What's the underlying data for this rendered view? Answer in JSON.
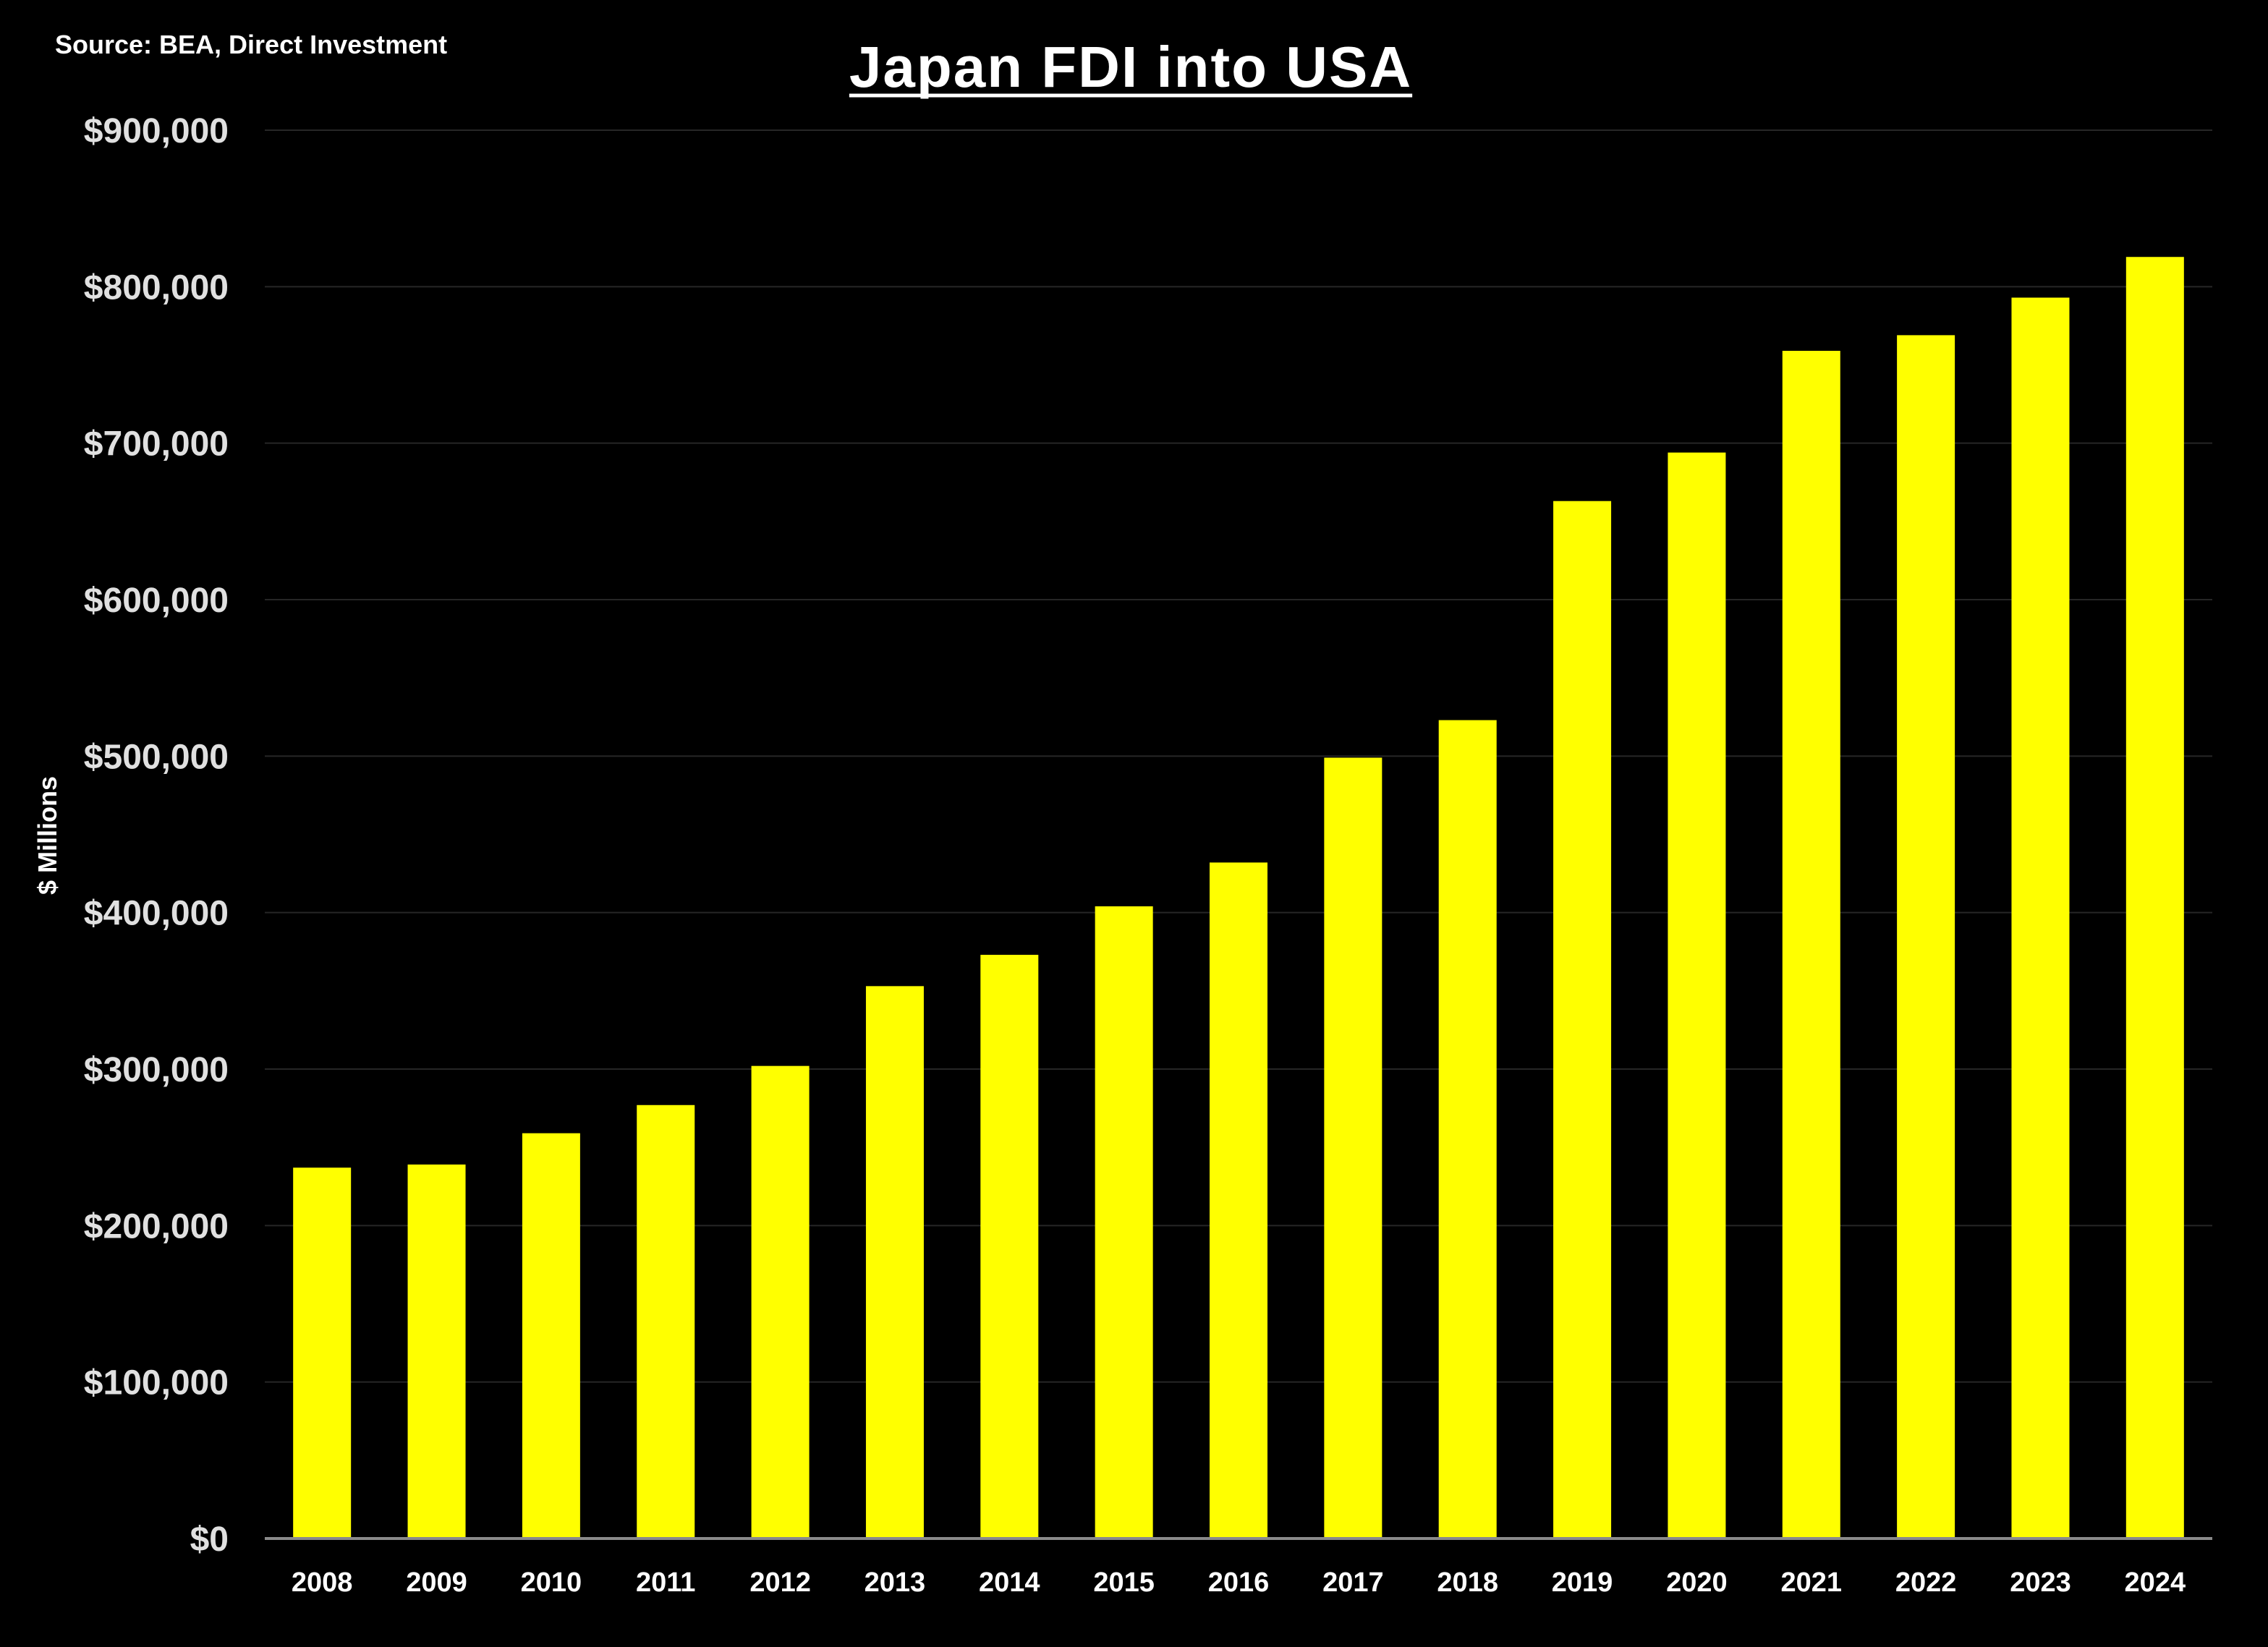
{
  "source": "Source: BEA, Direct Investment",
  "chart_data": {
    "type": "bar",
    "title": "Japan FDI into USA",
    "xlabel": "",
    "ylabel": "$ Millions",
    "ylim": [
      0,
      900000
    ],
    "yticks": [
      0,
      100000,
      200000,
      300000,
      400000,
      500000,
      600000,
      700000,
      800000,
      900000
    ],
    "ytick_labels": [
      "$0",
      "$100,000",
      "$200,000",
      "$300,000",
      "$400,000",
      "$500,000",
      "$600,000",
      "$700,000",
      "$800,000",
      "$900,000"
    ],
    "grid": true,
    "categories": [
      "2008",
      "2009",
      "2010",
      "2011",
      "2012",
      "2013",
      "2014",
      "2015",
      "2016",
      "2017",
      "2018",
      "2019",
      "2020",
      "2021",
      "2022",
      "2023",
      "2024"
    ],
    "series": [
      {
        "name": "Japan FDI into USA",
        "values": [
          237000,
          239000,
          259000,
          277000,
          302000,
          353000,
          373000,
          404000,
          432000,
          499000,
          523000,
          663000,
          694000,
          759000,
          769000,
          793000,
          819000
        ]
      }
    ]
  },
  "colors": {
    "background": "#000000",
    "bar": "#ffff00",
    "text": "#ffffff",
    "ytick_text": "#e0e0e0",
    "grid": "#262626",
    "axis": "#8a8a8a"
  }
}
